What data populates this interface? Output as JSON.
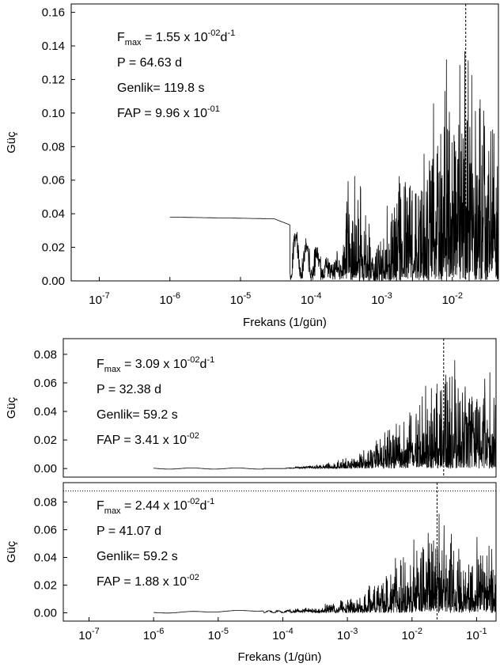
{
  "chart_data": [
    {
      "type": "line",
      "x_axis": {
        "label": "Frekans (1/gün)",
        "scale": "log",
        "xlim": [
          4e-08,
          0.045
        ],
        "ticks": [
          {
            "base": "10",
            "exp": "-7",
            "v": 1e-07
          },
          {
            "base": "10",
            "exp": "-6",
            "v": 1e-06
          },
          {
            "base": "10",
            "exp": "-5",
            "v": 1e-05
          },
          {
            "base": "10",
            "exp": "-4",
            "v": 0.0001
          },
          {
            "base": "10",
            "exp": "-3",
            "v": 0.001
          },
          {
            "base": "10",
            "exp": "-2",
            "v": 0.01
          }
        ]
      },
      "y_axis": {
        "label": "Güç",
        "ylim": [
          0,
          0.165
        ],
        "ticks": [
          {
            "label": "0.00",
            "v": 0
          },
          {
            "label": "0.02",
            "v": 0.02
          },
          {
            "label": "0.04",
            "v": 0.04
          },
          {
            "label": "0.06",
            "v": 0.06
          },
          {
            "label": "0.08",
            "v": 0.08
          },
          {
            "label": "0.10",
            "v": 0.1
          },
          {
            "label": "0.12",
            "v": 0.12
          },
          {
            "label": "0.14",
            "v": 0.14
          },
          {
            "label": "0.16",
            "v": 0.16
          }
        ]
      },
      "peak_marker": 0.0155,
      "fap_line": null,
      "annotations": {
        "fmax": {
          "pre": "F",
          "sub": "max",
          "mid": "= 1.55 x 10",
          "sup1": "-02",
          "unit": "d",
          "sup2": "-1"
        },
        "period": "P = 64.63 d",
        "amplitude": "Genlik= 119.8 s",
        "fap": {
          "text": "FAP = 9.96 x 10",
          "sup": "-01"
        }
      },
      "series": {
        "flat_start": 1e-06,
        "flat_level": 0.038,
        "envelope": [
          [
            1e-06,
            0.038
          ],
          [
            3e-05,
            0.037
          ],
          [
            8e-05,
            0.03
          ],
          [
            0.00017,
            0.017
          ],
          [
            0.00025,
            0.025
          ],
          [
            0.00035,
            0.066
          ],
          [
            0.0005,
            0.069
          ],
          [
            0.0008,
            0.02
          ],
          [
            0.0012,
            0.05
          ],
          [
            0.002,
            0.08
          ],
          [
            0.004,
            0.09
          ],
          [
            0.006,
            0.15
          ],
          [
            0.01,
            0.14
          ],
          [
            0.02,
            0.15
          ],
          [
            0.045,
            0.12
          ]
        ],
        "seed": 11
      }
    },
    {
      "type": "line",
      "x_axis": {
        "label": "",
        "scale": "log",
        "xlim": [
          4e-08,
          0.2
        ],
        "ticks": []
      },
      "y_axis": {
        "label": "Güç",
        "ylim": [
          -0.006,
          0.091
        ],
        "ticks": [
          {
            "label": "0.00",
            "v": 0
          },
          {
            "label": "0.02",
            "v": 0.02
          },
          {
            "label": "0.04",
            "v": 0.04
          },
          {
            "label": "0.06",
            "v": 0.06
          },
          {
            "label": "0.08",
            "v": 0.08
          }
        ]
      },
      "peak_marker": 0.0309,
      "fap_line": null,
      "annotations": {
        "fmax": {
          "pre": "F",
          "sub": "max",
          "mid": "= 3.09 x 10",
          "sup1": "-02",
          "unit": "d",
          "sup2": "-1"
        },
        "period": "P = 32.38 d",
        "amplitude": "Genlik= 59.2 s",
        "fap": {
          "text": "FAP = 3.41 x 10",
          "sup": "-02"
        }
      },
      "series": {
        "flat_start": 1e-06,
        "flat_level": 0.0,
        "envelope": [
          [
            1e-06,
            0.0
          ],
          [
            0.0001,
            0.0
          ],
          [
            0.0004,
            0.004
          ],
          [
            0.0008,
            0.007
          ],
          [
            0.0015,
            0.012
          ],
          [
            0.003,
            0.025
          ],
          [
            0.006,
            0.035
          ],
          [
            0.012,
            0.05
          ],
          [
            0.03,
            0.085
          ],
          [
            0.2,
            0.07
          ]
        ],
        "seed": 23
      }
    },
    {
      "type": "line",
      "x_axis": {
        "label": "Frekans (1/gün)",
        "scale": "log",
        "xlim": [
          4e-08,
          0.2
        ],
        "ticks": [
          {
            "base": "10",
            "exp": "-7",
            "v": 1e-07
          },
          {
            "base": "10",
            "exp": "-6",
            "v": 1e-06
          },
          {
            "base": "10",
            "exp": "-5",
            "v": 1e-05
          },
          {
            "base": "10",
            "exp": "-4",
            "v": 0.0001
          },
          {
            "base": "10",
            "exp": "-3",
            "v": 0.001
          },
          {
            "base": "10",
            "exp": "-2",
            "v": 0.01
          },
          {
            "base": "10",
            "exp": "-1",
            "v": 0.1
          }
        ]
      },
      "y_axis": {
        "label": "Güç",
        "ylim": [
          -0.006,
          0.094
        ],
        "ticks": [
          {
            "label": "0.00",
            "v": 0
          },
          {
            "label": "0.02",
            "v": 0.02
          },
          {
            "label": "0.04",
            "v": 0.04
          },
          {
            "label": "0.06",
            "v": 0.06
          },
          {
            "label": "0.08",
            "v": 0.08
          }
        ]
      },
      "peak_marker": 0.0244,
      "fap_line": 0.088,
      "annotations": {
        "fmax": {
          "pre": "F",
          "sub": "max",
          "mid": "= 2.44 x 10",
          "sup1": "-02",
          "unit": "d",
          "sup2": "-1"
        },
        "period": "P = 41.07 d",
        "amplitude": "Genlik= 59.2 s",
        "fap": {
          "text": "FAP = 1.88 x 10",
          "sup": "-02"
        }
      },
      "series": {
        "flat_start": 1e-06,
        "flat_level": 0.0,
        "envelope": [
          [
            1e-06,
            0.0
          ],
          [
            0.0001,
            0.002
          ],
          [
            0.0004,
            0.006
          ],
          [
            0.001,
            0.012
          ],
          [
            0.002,
            0.02
          ],
          [
            0.004,
            0.04
          ],
          [
            0.008,
            0.05
          ],
          [
            0.024,
            0.082
          ],
          [
            0.06,
            0.06
          ],
          [
            0.2,
            0.06
          ]
        ],
        "seed": 37
      }
    }
  ]
}
